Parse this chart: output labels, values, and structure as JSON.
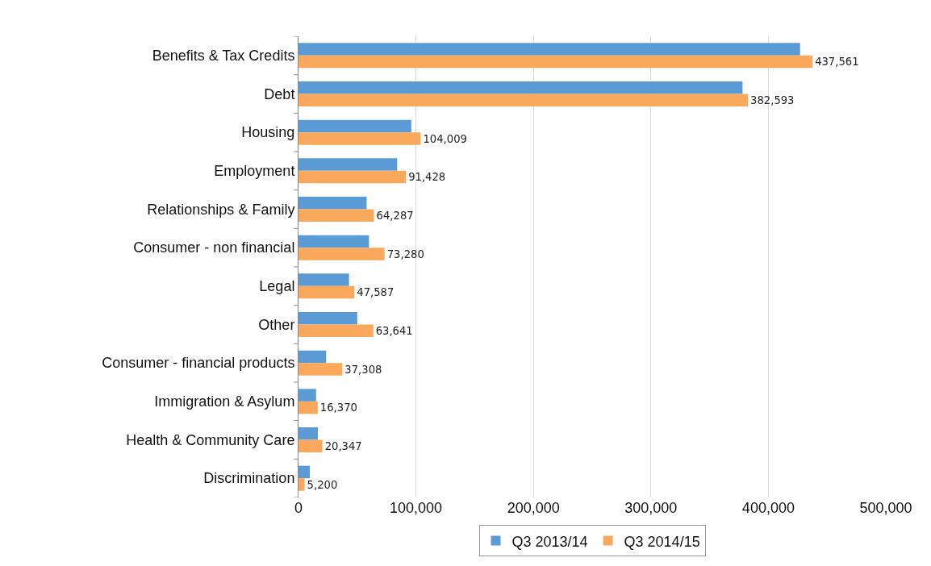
{
  "chart_data": {
    "type": "bar",
    "orientation": "horizontal",
    "categories": [
      "Benefits & Tax Credits",
      "Debt",
      "Housing",
      "Employment",
      "Relationships & Family",
      "Consumer - non financial",
      "Legal",
      "Other",
      "Consumer - financial products",
      "Immigration & Asylum",
      "Health & Community Care",
      "Discrimination"
    ],
    "series": [
      {
        "name": "Q3 2013/14",
        "color": "#5b9bd5",
        "values": [
          427000,
          378000,
          96000,
          84000,
          58000,
          60000,
          43000,
          50000,
          23500,
          15000,
          16500,
          9700
        ]
      },
      {
        "name": "Q3 2014/15",
        "color": "#faa95c",
        "values": [
          437561,
          382593,
          104009,
          91428,
          64287,
          73280,
          47587,
          63641,
          37308,
          16370,
          20347,
          5200
        ],
        "value_labels": [
          "437,561",
          "382,593",
          "104,009",
          "91,428",
          "64,287",
          "73,280",
          "47,587",
          "63,641",
          "37,308",
          "16,370",
          "20,347",
          "5,200"
        ]
      }
    ],
    "xlim": [
      0,
      500000
    ],
    "xticks": [
      {
        "value": 0,
        "label": "0"
      },
      {
        "value": 100000,
        "label": "100,000"
      },
      {
        "value": 200000,
        "label": "200,000"
      },
      {
        "value": 300000,
        "label": "300,000"
      },
      {
        "value": 400000,
        "label": "400,000"
      },
      {
        "value": 500000,
        "label": "500,000"
      }
    ],
    "grid": "x",
    "legend": "bottom"
  }
}
